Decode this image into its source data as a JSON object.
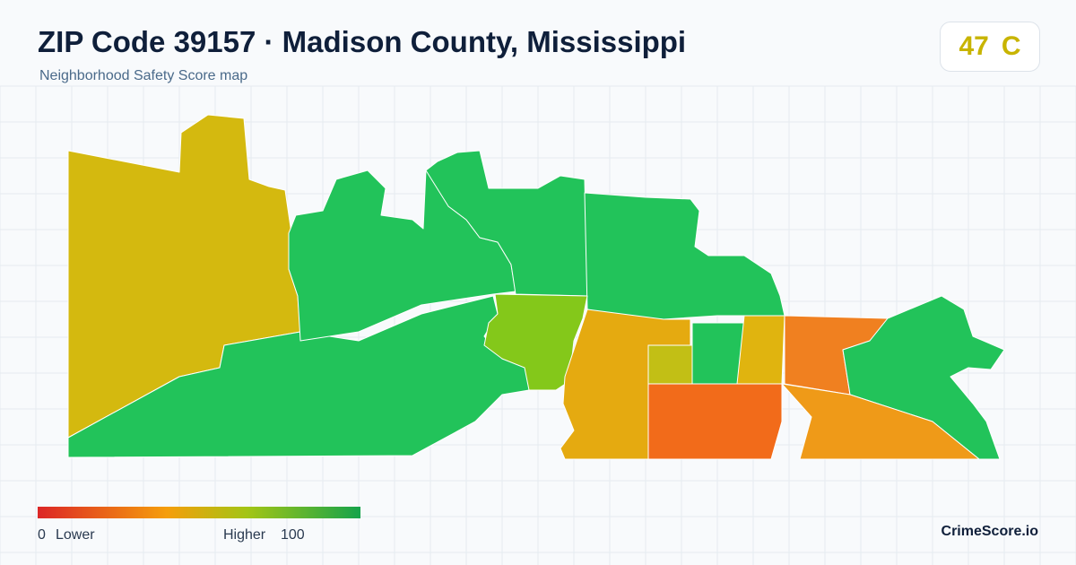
{
  "header": {
    "title": "ZIP Code 39157 · Madison County, Mississippi",
    "subtitle": "Neighborhood Safety Score map"
  },
  "score": {
    "value": 47,
    "grade": "C"
  },
  "legend": {
    "min": 0,
    "min_label": "Lower",
    "max_label": "Higher",
    "max": 100
  },
  "brand": "CrimeScore.io"
}
